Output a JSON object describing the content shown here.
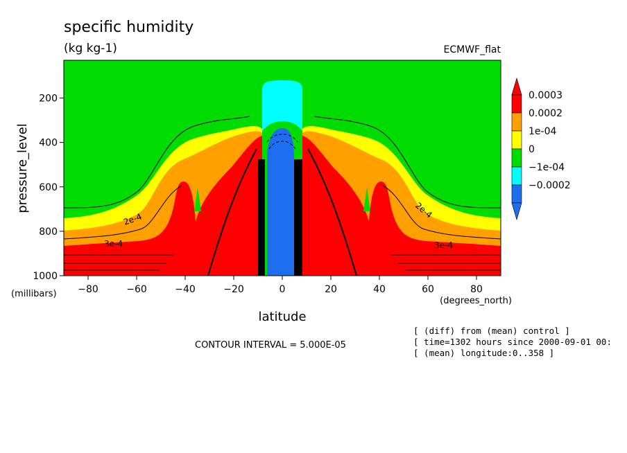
{
  "chart_data": {
    "type": "heatmap",
    "title": "specific humidity",
    "subtitle": "(kg kg-1)",
    "dataset_label": "ECMWF_flat",
    "xlabel": "latitude",
    "xunits": "(degrees_north)",
    "ylabel": "pressure_level",
    "yunits": "(millibars)",
    "xlim": [
      -90,
      90
    ],
    "ylim": [
      1000,
      30
    ],
    "y_reversed": true,
    "x_ticks": [
      -80,
      -60,
      -40,
      -20,
      0,
      20,
      40,
      60,
      80
    ],
    "x_tick_labels": [
      "−80",
      "−60",
      "−40",
      "−20",
      "0",
      "20",
      "40",
      "60",
      "80"
    ],
    "y_ticks": [
      200,
      400,
      600,
      800,
      1000
    ],
    "y_tick_labels": [
      "200",
      "400",
      "600",
      "800",
      "1000"
    ],
    "legend": {
      "placement": "right",
      "labels": [
        "0.0003",
        "0.0002",
        "1e-04",
        "0",
        "−1e-04",
        "−0.0002"
      ],
      "colors": [
        "#ff0000",
        "#ffa000",
        "#ffff00",
        "#00dc00",
        "#00ffff",
        "#1e6ef0"
      ],
      "arrow_top_color": "#ff0000",
      "arrow_bottom_color": "#1e6ef0"
    },
    "contour_labels": [
      "2e-4",
      "3e-4",
      "2e-4",
      "3e-4"
    ],
    "contour_interval": "CONTOUR INTERVAL = 5.000E-05",
    "notes": [
      "[ (diff) from (mean) control ]",
      "[ time=1302 hours since 2000-09-01 00:",
      "[ (mean) longitude:0..358 ]"
    ],
    "palette": {
      "red": "#ff0000",
      "orange": "#ffa000",
      "yellow": "#ffff00",
      "green": "#00dc00",
      "cyan": "#00ffff",
      "blue": "#1e6ef0"
    }
  }
}
